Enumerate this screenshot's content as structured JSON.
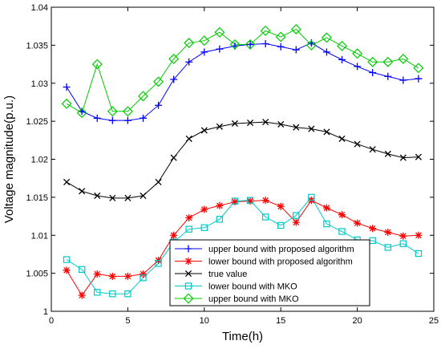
{
  "chart_data": {
    "type": "line",
    "xlabel": "Time(h)",
    "ylabel": "Voltage magnitude(p.u.)",
    "xlim": [
      0,
      25
    ],
    "ylim": [
      1.0,
      1.04
    ],
    "xticks": [
      0,
      5,
      10,
      15,
      20,
      25
    ],
    "yticks": [
      1.0,
      1.005,
      1.01,
      1.015,
      1.02,
      1.025,
      1.03,
      1.035,
      1.04
    ],
    "xtick_labels": [
      "0",
      "5",
      "10",
      "15",
      "20",
      "25"
    ],
    "ytick_labels": [
      "1",
      "1.005",
      "1.01",
      "1.015",
      "1.02",
      "1.025",
      "1.03",
      "1.035",
      "1.04"
    ],
    "grid": false,
    "legend_position": "bottom-center",
    "x": [
      1,
      2,
      3,
      4,
      5,
      6,
      7,
      8,
      9,
      10,
      11,
      12,
      13,
      14,
      15,
      16,
      17,
      18,
      19,
      20,
      21,
      22,
      23,
      24
    ],
    "series": [
      {
        "name": "upper bound with proposed algorithm",
        "color": "#0000ff",
        "marker": "plus",
        "values": [
          1.0295,
          1.0263,
          1.0254,
          1.0251,
          1.0251,
          1.0254,
          1.0271,
          1.0305,
          1.0328,
          1.0341,
          1.0345,
          1.0349,
          1.0351,
          1.0352,
          1.0348,
          1.0344,
          1.0353,
          1.0341,
          1.0331,
          1.0322,
          1.0314,
          1.0309,
          1.0304,
          1.0306
        ]
      },
      {
        "name": "lower bound with proposed algorithm",
        "color": "#ff0000",
        "marker": "star",
        "values": [
          1.0054,
          1.0021,
          1.0049,
          1.0046,
          1.0046,
          1.0049,
          1.0067,
          1.01,
          1.0123,
          1.0134,
          1.0139,
          1.0144,
          1.0145,
          1.0146,
          1.0138,
          1.0117,
          1.0146,
          1.0136,
          1.0127,
          1.0116,
          1.0109,
          1.0104,
          1.0099,
          1.01
        ]
      },
      {
        "name": "true value",
        "color": "#000000",
        "marker": "x",
        "values": [
          1.017,
          1.0158,
          1.0152,
          1.0149,
          1.0149,
          1.0152,
          1.017,
          1.0202,
          1.0227,
          1.0238,
          1.0243,
          1.0247,
          1.0248,
          1.0249,
          1.0246,
          1.0242,
          1.024,
          1.0236,
          1.0227,
          1.022,
          1.0213,
          1.0207,
          1.0202,
          1.0203
        ]
      },
      {
        "name": "lower bound with MKO",
        "color": "#00c8c8",
        "marker": "square",
        "values": [
          1.0068,
          1.0055,
          1.0025,
          1.0023,
          1.0023,
          1.0044,
          1.0063,
          1.0091,
          1.0108,
          1.011,
          1.0121,
          1.0145,
          1.0146,
          1.0124,
          1.0113,
          1.0126,
          1.015,
          1.0115,
          1.0105,
          1.0094,
          1.0093,
          1.0084,
          1.0089,
          1.0076
        ]
      },
      {
        "name": "upper bound with MKO",
        "color": "#00cc00",
        "marker": "diamond",
        "values": [
          1.0273,
          1.0261,
          1.0325,
          1.0263,
          1.0263,
          1.0283,
          1.0302,
          1.0332,
          1.0353,
          1.0356,
          1.0367,
          1.0351,
          1.0351,
          1.0369,
          1.0361,
          1.0371,
          1.035,
          1.036,
          1.0349,
          1.0339,
          1.0328,
          1.0328,
          1.0332,
          1.032
        ]
      }
    ]
  }
}
